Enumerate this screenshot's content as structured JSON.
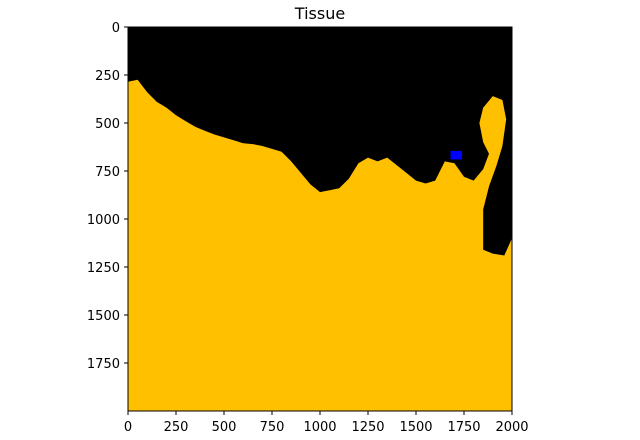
{
  "chart_data": {
    "type": "heatmap",
    "title": "Tissue",
    "xlabel": "",
    "ylabel": "",
    "xlim": [
      0,
      2000
    ],
    "ylim": [
      2000,
      0
    ],
    "y_inverted": true,
    "x_ticks": [
      0,
      250,
      500,
      750,
      1000,
      1250,
      1500,
      1750,
      2000
    ],
    "y_ticks": [
      0,
      250,
      500,
      750,
      1000,
      1250,
      1500,
      1750
    ],
    "grid": false,
    "legend": "none",
    "classes": [
      {
        "label": "background",
        "color": "#000000"
      },
      {
        "label": "tissue",
        "color": "#ffc000"
      },
      {
        "label": "marker",
        "color": "#0000ff"
      }
    ],
    "tissue_boundary": [
      [
        0,
        285
      ],
      [
        50,
        275
      ],
      [
        100,
        340
      ],
      [
        150,
        390
      ],
      [
        200,
        420
      ],
      [
        250,
        460
      ],
      [
        300,
        490
      ],
      [
        350,
        520
      ],
      [
        400,
        540
      ],
      [
        450,
        560
      ],
      [
        500,
        575
      ],
      [
        550,
        590
      ],
      [
        600,
        605
      ],
      [
        650,
        610
      ],
      [
        700,
        620
      ],
      [
        800,
        650
      ],
      [
        850,
        700
      ],
      [
        900,
        760
      ],
      [
        950,
        820
      ],
      [
        1000,
        860
      ],
      [
        1050,
        850
      ],
      [
        1100,
        840
      ],
      [
        1150,
        790
      ],
      [
        1200,
        710
      ],
      [
        1250,
        680
      ],
      [
        1300,
        700
      ],
      [
        1350,
        680
      ],
      [
        1400,
        720
      ],
      [
        1450,
        760
      ],
      [
        1500,
        800
      ],
      [
        1550,
        815
      ],
      [
        1600,
        800
      ],
      [
        1650,
        700
      ],
      [
        1700,
        710
      ],
      [
        1750,
        780
      ],
      [
        1800,
        800
      ],
      [
        1850,
        740
      ],
      [
        1880,
        660
      ],
      [
        1850,
        600
      ],
      [
        1830,
        500
      ],
      [
        1850,
        420
      ],
      [
        1900,
        360
      ],
      [
        1950,
        380
      ],
      [
        1970,
        480
      ],
      [
        1950,
        620
      ],
      [
        1920,
        720
      ],
      [
        1880,
        830
      ],
      [
        1850,
        950
      ],
      [
        1850,
        1080
      ],
      [
        1850,
        1160
      ],
      [
        1900,
        1180
      ],
      [
        1960,
        1190
      ],
      [
        2000,
        1100
      ]
    ],
    "marker_region": {
      "x": [
        1680,
        1740
      ],
      "y": [
        645,
        690
      ]
    }
  }
}
